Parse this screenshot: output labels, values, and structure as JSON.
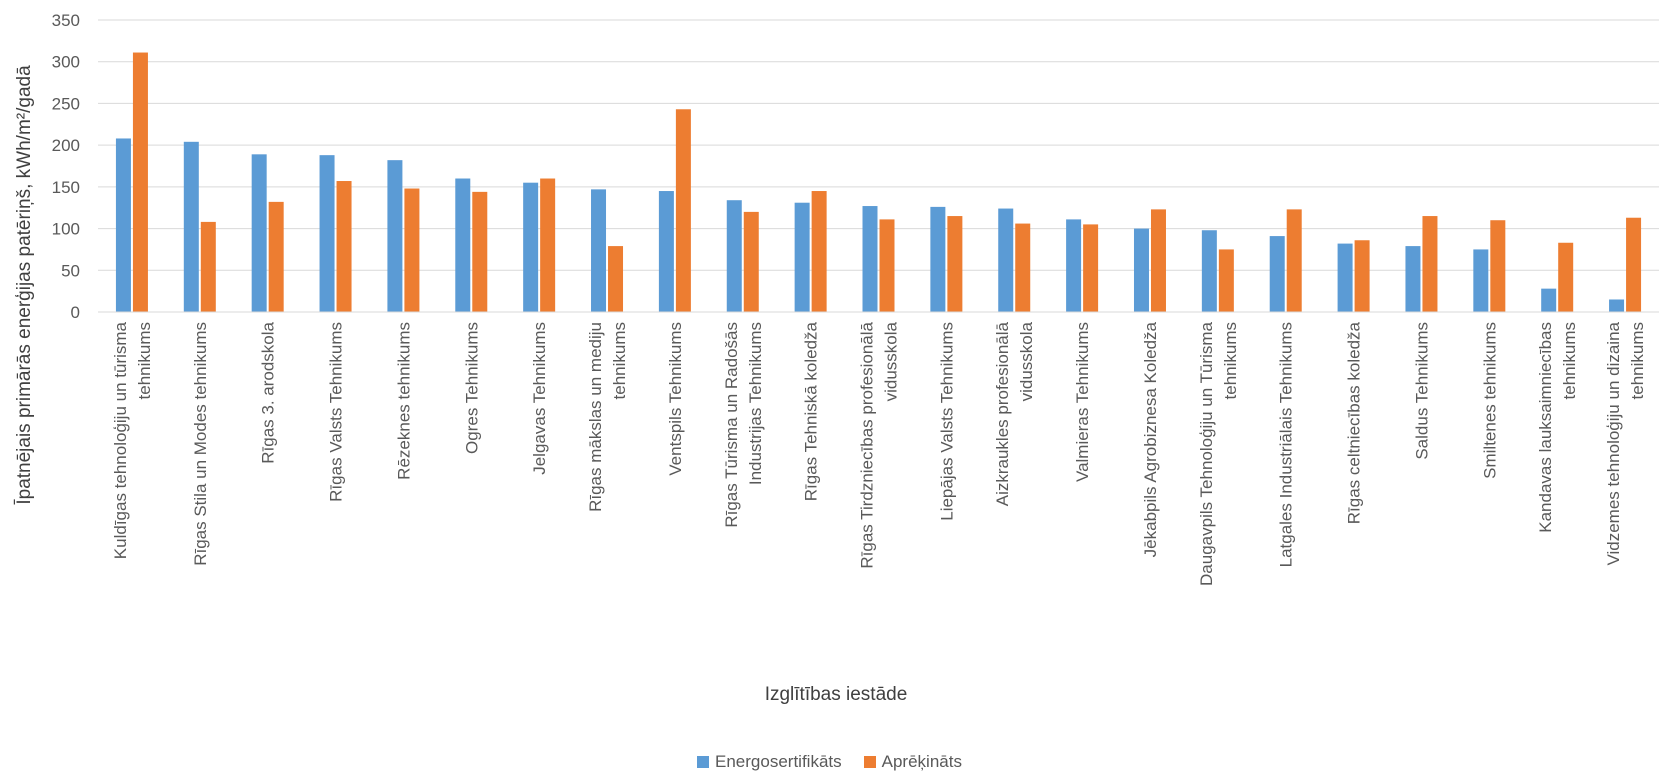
{
  "chart_data": {
    "type": "bar",
    "ylabel": "Īpatnējais primārās enerģijas patēriņš, kWh/m²/gadā",
    "xlabel": "Izglītības iestāde",
    "ylim": [
      0,
      350
    ],
    "yticks": [
      0,
      50,
      100,
      150,
      200,
      250,
      300,
      350
    ],
    "grid": true,
    "legend_position": "bottom",
    "categories": [
      [
        "Kuldīgas tehnoloģiju un tūrisma",
        "tehnikums"
      ],
      [
        "Rīgas Stila un Modes tehnikums"
      ],
      [
        "Rīgas 3. arodskola"
      ],
      [
        "Rīgas Valsts Tehnikums"
      ],
      [
        "Rēzeknes tehnikums"
      ],
      [
        "Ogres Tehnikums"
      ],
      [
        "Jelgavas Tehnikums"
      ],
      [
        "Rīgas mākslas un mediju",
        "tehnikums"
      ],
      [
        "Ventspils Tehnikums"
      ],
      [
        "Rīgas Tūrisma un Radošās",
        "Industrijas Tehnikums"
      ],
      [
        "Rīgas Tehniskā koledža"
      ],
      [
        "Rīgas Tirdzniecības profesionālā",
        "vidusskola"
      ],
      [
        "Liepājas Valsts Tehnikums"
      ],
      [
        "Aizkraukles profesionālā",
        "vidusskola"
      ],
      [
        "Valmieras Tehnikums"
      ],
      [
        "Jēkabpils Agrobiznesa Koledža"
      ],
      [
        "Daugavpils Tehnoloģiju un Tūrisma",
        "tehnikums"
      ],
      [
        "Latgales Industriālais Tehnikums"
      ],
      [
        "Rīgas celtniecības koledža"
      ],
      [
        "Saldus Tehnikums"
      ],
      [
        "Smiltenes tehnikums"
      ],
      [
        "Kandavas lauksaimniecības",
        "tehnikums"
      ],
      [
        "Vidzemes tehnoloģiju un dizaina",
        "tehnikums"
      ]
    ],
    "series": [
      {
        "name": "Energosertifikāts",
        "color": "#5B9BD5",
        "values": [
          208,
          204,
          189,
          188,
          182,
          160,
          155,
          147,
          145,
          134,
          131,
          127,
          126,
          124,
          111,
          100,
          98,
          91,
          82,
          79,
          75,
          28,
          15
        ]
      },
      {
        "name": "Aprēķināts",
        "color": "#ED7D31",
        "values": [
          311,
          108,
          132,
          157,
          148,
          144,
          160,
          79,
          243,
          120,
          145,
          111,
          115,
          106,
          105,
          123,
          75,
          123,
          86,
          115,
          110,
          83,
          113
        ]
      }
    ]
  }
}
